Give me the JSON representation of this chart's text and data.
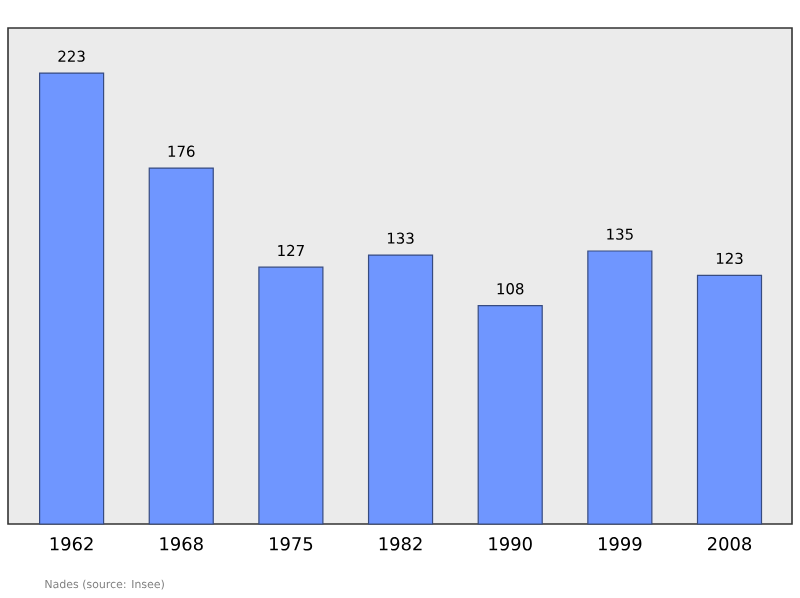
{
  "chart_data": {
    "type": "bar",
    "categories": [
      "1962",
      "1968",
      "1975",
      "1982",
      "1990",
      "1999",
      "2008"
    ],
    "values": [
      223,
      176,
      127,
      133,
      108,
      135,
      123
    ],
    "color": "#6f96ff",
    "data_labels": true,
    "grid": false,
    "annotations": [
      "Nades    (source: Insee)"
    ]
  }
}
